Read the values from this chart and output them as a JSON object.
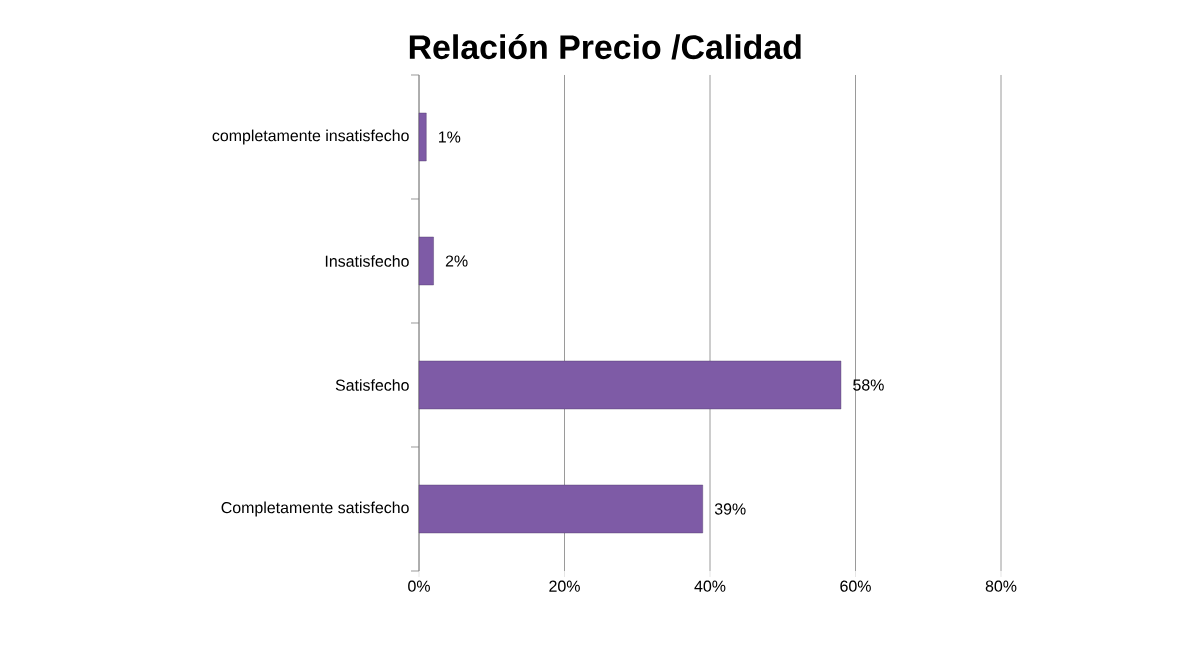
{
  "chart_data": {
    "type": "bar",
    "orientation": "horizontal",
    "title": "Relación Precio /Calidad",
    "categories": [
      "completamente insatisfecho",
      "Insatisfecho",
      "Satisfecho",
      "Completamente satisfecho"
    ],
    "values": [
      1,
      2,
      58,
      39
    ],
    "value_labels": [
      "1%",
      "2%",
      "58%",
      "39%"
    ],
    "color": "#7e5ba6",
    "xlim": [
      0,
      80
    ],
    "xticks": [
      {
        "value": 0,
        "label": "0%"
      },
      {
        "value": 20,
        "label": "20%"
      },
      {
        "value": 40,
        "label": "40%"
      },
      {
        "value": 60,
        "label": "60%"
      },
      {
        "value": 80,
        "label": "80%"
      }
    ],
    "grid": "x"
  }
}
